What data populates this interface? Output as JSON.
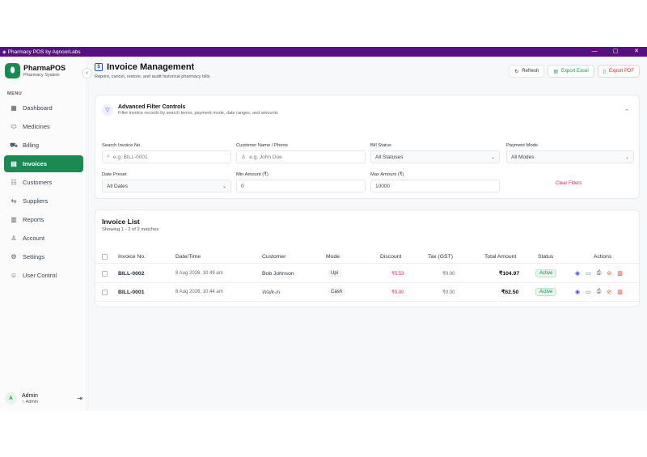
{
  "titlebar": {
    "title": "Pharmacy POS by AqnoorLabs",
    "min": "—",
    "max": "▢",
    "close": "✕"
  },
  "brand": {
    "name": "PharmaPOS",
    "subtitle": "Pharmacy System"
  },
  "sidebar": {
    "menu_label": "MENU",
    "items": [
      {
        "label": "Dashboard",
        "icon": "grid-icon",
        "glyph": "▦"
      },
      {
        "label": "Medicines",
        "icon": "pill-icon",
        "glyph": "⬭"
      },
      {
        "label": "Billing",
        "icon": "cart-icon",
        "glyph": "⛟"
      },
      {
        "label": "Invoices",
        "icon": "document-icon",
        "glyph": "▤"
      },
      {
        "label": "Customers",
        "icon": "customers-icon",
        "glyph": "☷"
      },
      {
        "label": "Suppliers",
        "icon": "truck-icon",
        "glyph": "⇆"
      },
      {
        "label": "Reports",
        "icon": "bar-chart-icon",
        "glyph": "▥"
      },
      {
        "label": "Account",
        "icon": "user-icon",
        "glyph": "♙"
      },
      {
        "label": "Settings",
        "icon": "gear-icon",
        "glyph": "⚙"
      },
      {
        "label": "User Control",
        "icon": "users-icon",
        "glyph": "☺"
      }
    ],
    "active": "Invoices",
    "user": {
      "initial": "A",
      "name": "Admin",
      "role": "Admin"
    }
  },
  "header": {
    "title": "Invoice Management",
    "subtitle": "Reprint, cancel, restore, and audit historical pharmacy bills",
    "refresh": "Refresh",
    "export_excel": "Export Excel",
    "export_pdf": "Export PDF"
  },
  "filters": {
    "title": "Advanced Filter Controls",
    "subtitle": "Filter invoice records by search terms, payment mode, date ranges, and amounts",
    "search_invoice": {
      "label": "Search Invoice No.",
      "placeholder": "e.g. BILL-0001"
    },
    "customer": {
      "label": "Customer Name / Phone",
      "placeholder": "e.g. John Doe"
    },
    "bill_status": {
      "label": "Bill Status",
      "value": "All Statuses"
    },
    "payment_mode": {
      "label": "Payment Mode",
      "value": "All Modes"
    },
    "date_preset": {
      "label": "Date Preset",
      "value": "All Dates"
    },
    "min_amount": {
      "label": "Min Amount (₹)",
      "value": "0"
    },
    "max_amount": {
      "label": "Max Amount (₹)",
      "value": "10000"
    },
    "clear": "Clear Filters"
  },
  "invoice_list": {
    "title": "Invoice List",
    "subtitle": "Showing 1 - 2 of 2 matches",
    "columns": [
      "Invoice No.",
      "Date/Time",
      "Customer",
      "Mode",
      "Discount",
      "Tax (GST)",
      "Total Amount",
      "Status",
      "Actions"
    ],
    "rows": [
      {
        "invoice": "BILL-0002",
        "datetime": "8 Aug 2026, 10:49 am",
        "customer": "Bob Johnson",
        "mode": "Upi",
        "discount": "₹5.53",
        "tax": "₹0.00",
        "total": "₹104.97",
        "status": "Active"
      },
      {
        "invoice": "BILL-0001",
        "datetime": "8 Aug 2026, 10:44 am",
        "customer": "Walk-in",
        "mode": "Cash",
        "discount": "₹0.00",
        "tax": "₹0.00",
        "total": "₹62.50",
        "status": "Active"
      }
    ]
  },
  "colors": {
    "primary": "#1a8a52",
    "titlebar": "#5b0f7e",
    "danger": "#dc2626"
  }
}
